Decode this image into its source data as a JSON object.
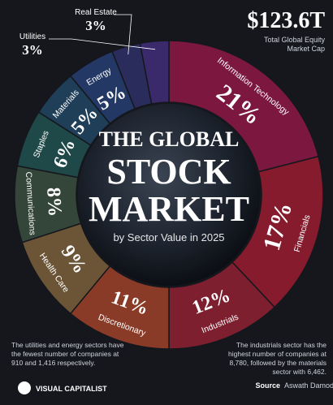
{
  "chart_data": {
    "type": "donut",
    "title": [
      "THE GLOBAL",
      "STOCK",
      "MARKET"
    ],
    "subtitle": "by Sector Value in 2025",
    "total": "$123.6T",
    "total_label": "Total Global Equity Market Cap",
    "categories": [
      "Information Technology",
      "Financials",
      "Industrials",
      "Discretionary",
      "Health Care",
      "Communications",
      "Staples",
      "Materials",
      "Energy",
      "Real Estate",
      "Utilities"
    ],
    "values": [
      21,
      17,
      12,
      11,
      9,
      8,
      6,
      5,
      5,
      3,
      3
    ],
    "value_labels": [
      "21%",
      "17%",
      "12%",
      "11%",
      "9%",
      "8%",
      "6%",
      "5%",
      "5%",
      "3%",
      "3%"
    ],
    "colors": [
      "#7c1840",
      "#861b2d",
      "#7d1f2f",
      "#8a3b28",
      "#6b5536",
      "#34463a",
      "#1f4848",
      "#1f3e58",
      "#243866",
      "#2a2c5c",
      "#3a2a6c"
    ],
    "notes": [
      "The utilities and energy sectors have the fewest number of companies at 910 and 1,416 respectively.",
      "The industrials sector has the highest number of companies at 8,780, followed by the materials sector with 6,462."
    ],
    "brand": "VISUAL CAPITALIST",
    "source_label": "Source",
    "source": "Aswath Damodaran"
  }
}
